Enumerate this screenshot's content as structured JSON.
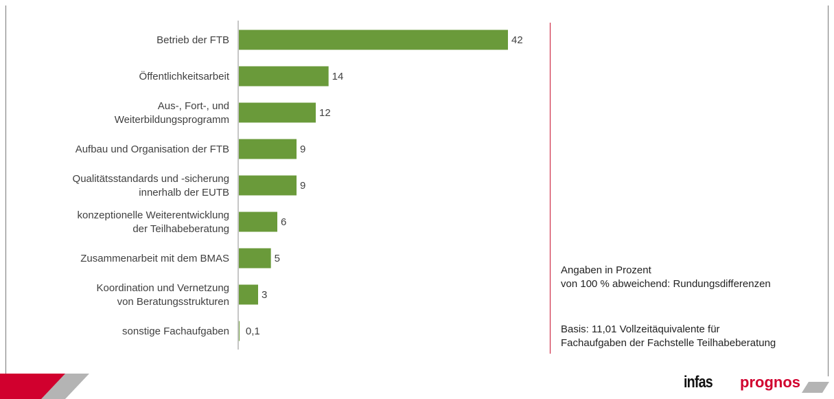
{
  "chart_data": {
    "type": "bar",
    "orientation": "horizontal",
    "categories": [
      "Betrieb der FTB",
      "Öffentlichkeitsarbeit",
      "Aus-, Fort-, und\nWeiterbildungsprogramm",
      "Aufbau und Organisation der FTB",
      "Qualitätsstandards und -sicherung\ninnerhalb der EUTB",
      "konzeptionelle Weiterentwicklung\nder Teilhabeberatung",
      "Zusammenarbeit mit dem BMAS",
      "Koordination und Vernetzung\nvon Beratungsstrukturen",
      "sonstige Fachaufgaben"
    ],
    "values": [
      42,
      14,
      12,
      9,
      9,
      6,
      5,
      3,
      0.1
    ],
    "value_labels": [
      "42",
      "14",
      "12",
      "9",
      "9",
      "6",
      "5",
      "3",
      "0,1"
    ],
    "xlim": [
      0,
      45
    ],
    "grid": false,
    "legend": "none",
    "bar_color": "#6a9a3a"
  },
  "notes": {
    "unit_line1": "Angaben in Prozent",
    "unit_line2": "von 100 % abweichend: Rundungsdifferenzen",
    "basis_line1": "Basis: 11,01 Vollzeitäquivalente für",
    "basis_line2": "Fachaufgaben der Fachstelle Teilhabeberatung"
  },
  "logos": {
    "infas": "infas",
    "prognos": "prognos"
  },
  "colors": {
    "accent_red": "#d1002e",
    "divider": "#c8102e",
    "stripe_grey": "#b4b4b4"
  }
}
